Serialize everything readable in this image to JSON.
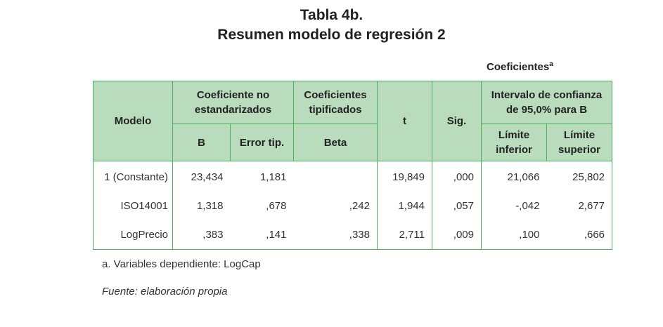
{
  "title": {
    "line1": "Tabla 4b.",
    "line2": "Resumen modelo de regresión 2"
  },
  "caption": {
    "text": "Coeficientes",
    "superscript": "a"
  },
  "table": {
    "headers": {
      "modelo": "Modelo",
      "coef_no_std": "Coeficiente no estandarizados",
      "coef_tip": "Coeficientes tipificados",
      "t": "t",
      "sig": "Sig.",
      "intervalo": "Intervalo de confianza de 95,0% para B",
      "b": "B",
      "error": "Error tip.",
      "beta": "Beta",
      "lim_inf": "Límite inferior",
      "lim_sup": "Límite superior"
    },
    "rows": [
      {
        "label": "1 (Constante)",
        "b": "23,434",
        "error": "1,181",
        "beta": "",
        "t": "19,849",
        "sig": ",000",
        "lim_inf": "21,066",
        "lim_sup": "25,802"
      },
      {
        "label": "ISO14001",
        "b": "1,318",
        "error": ",678",
        "beta": ",242",
        "t": "1,944",
        "sig": ",057",
        "lim_inf": "-,042",
        "lim_sup": "2,677"
      },
      {
        "label": "LogPrecio",
        "b": ",383",
        "error": ",141",
        "beta": ",338",
        "t": "2,711",
        "sig": ",009",
        "lim_inf": ",100",
        "lim_sup": ",666"
      }
    ]
  },
  "note": "a. Variables dependiente: LogCap",
  "source": "Fuente: elaboración propia",
  "colors": {
    "header_bg": "#b8dcbc",
    "border": "#4caf5e"
  }
}
